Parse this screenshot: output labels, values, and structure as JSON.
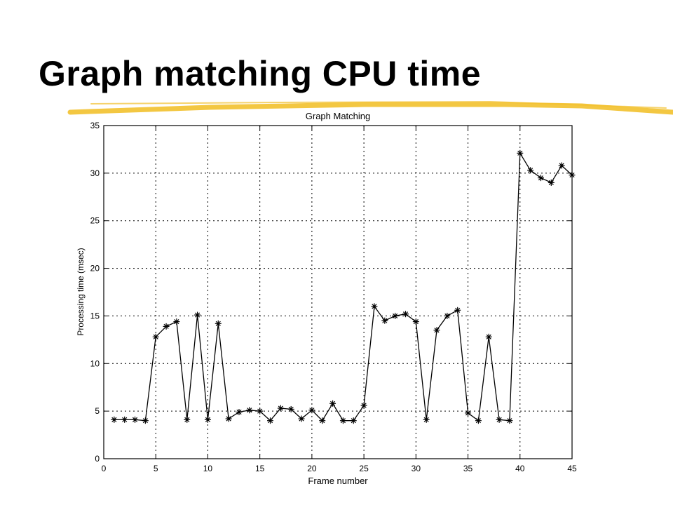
{
  "slide": {
    "title": "Graph matching CPU time",
    "accent_color": "#f2c12e"
  },
  "chart_data": {
    "type": "line",
    "title": "Graph Matching",
    "xlabel": "Frame number",
    "ylabel": "Processing time (msec)",
    "xlim": [
      0,
      45
    ],
    "ylim": [
      0,
      35
    ],
    "xticks": [
      0,
      5,
      10,
      15,
      20,
      25,
      30,
      35,
      40,
      45
    ],
    "yticks": [
      0,
      5,
      10,
      15,
      20,
      25,
      30,
      35
    ],
    "grid": true,
    "marker": "asterisk",
    "line_color": "#000000",
    "series": [
      {
        "x": [
          1,
          2,
          3,
          4,
          5,
          6,
          7,
          8,
          9,
          10,
          11,
          12,
          13,
          14,
          15,
          16,
          17,
          18,
          19,
          20,
          21,
          22,
          23,
          24,
          25,
          26,
          27,
          28,
          29,
          30,
          31,
          32,
          33,
          34,
          35,
          36,
          37,
          38,
          39,
          40,
          41,
          42,
          43,
          44,
          45
        ],
        "values": [
          4.1,
          4.1,
          4.1,
          4.0,
          12.8,
          13.9,
          14.4,
          4.1,
          15.1,
          4.1,
          14.2,
          4.2,
          4.9,
          5.1,
          5.0,
          4.0,
          5.3,
          5.2,
          4.2,
          5.1,
          4.0,
          5.8,
          4.0,
          4.0,
          5.6,
          16.0,
          14.5,
          15.0,
          15.2,
          14.4,
          4.1,
          13.5,
          15.0,
          15.6,
          4.8,
          4.0,
          12.8,
          4.1,
          4.0,
          32.1,
          30.3,
          29.5,
          29.0,
          30.8,
          29.8
        ]
      }
    ]
  }
}
